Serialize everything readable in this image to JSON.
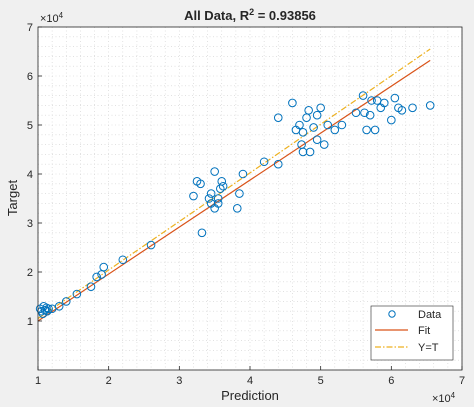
{
  "chart_data": {
    "type": "scatter",
    "title_prefix": "All Data, R",
    "title_sup": "2",
    "title_suffix": " = 0.93856",
    "xlabel": "Prediction",
    "ylabel": "Target",
    "xlim": [
      1,
      7
    ],
    "ylim": [
      0,
      7
    ],
    "x_ticks": [
      1,
      2,
      3,
      4,
      5,
      6,
      7
    ],
    "y_ticks": [
      1,
      2,
      3,
      4,
      5,
      6,
      7
    ],
    "x_tick_labels": [
      "1",
      "2",
      "3",
      "4",
      "5",
      "6",
      "7"
    ],
    "y_tick_labels": [
      "1",
      "2",
      "3",
      "4",
      "5",
      "6",
      "7"
    ],
    "x_exponent_base": "×10",
    "x_exponent_power": "4",
    "y_exponent_base": "×10",
    "y_exponent_power": "4",
    "grid": "dotted",
    "legend_position": "bottom-right",
    "colors": {
      "data": "#0072bd",
      "fit": "#d95319",
      "identity": "#edb120"
    },
    "series": [
      {
        "name": "Data",
        "kind": "markers",
        "x": [
          1.03,
          1.05,
          1.08,
          1.1,
          1.12,
          1.15,
          1.07,
          1.13,
          1.2,
          1.3,
          1.4,
          1.55,
          1.75,
          1.9,
          2.2,
          1.83,
          1.93,
          2.6,
          3.2,
          3.25,
          3.3,
          3.42,
          3.45,
          3.5,
          3.55,
          3.58,
          3.6,
          3.62,
          3.5,
          3.32,
          3.45,
          3.55,
          3.85,
          3.9,
          3.82,
          4.2,
          4.4,
          4.4,
          4.6,
          4.65,
          4.7,
          4.75,
          4.75,
          4.8,
          4.85,
          4.9,
          4.95,
          4.95,
          5.0,
          5.05,
          5.1,
          5.2,
          5.3,
          5.5,
          4.73,
          4.83,
          5.6,
          5.62,
          5.65,
          5.72,
          5.77,
          5.85,
          5.9,
          6.0,
          6.05,
          6.1,
          6.15,
          6.3,
          6.55,
          5.8,
          5.7
        ],
        "y": [
          1.25,
          1.2,
          1.3,
          1.22,
          1.27,
          1.25,
          1.15,
          1.2,
          1.25,
          1.3,
          1.4,
          1.55,
          1.7,
          1.95,
          2.25,
          1.9,
          2.1,
          2.55,
          3.55,
          3.85,
          3.8,
          3.5,
          3.4,
          3.3,
          3.5,
          3.7,
          3.85,
          3.75,
          4.05,
          2.8,
          3.6,
          3.4,
          3.6,
          4.0,
          3.3,
          4.25,
          4.2,
          5.15,
          5.45,
          4.9,
          5.0,
          4.85,
          4.45,
          5.15,
          4.45,
          4.95,
          5.2,
          4.7,
          5.35,
          4.6,
          5.0,
          4.9,
          5.0,
          5.25,
          4.6,
          5.3,
          5.6,
          5.25,
          4.9,
          5.5,
          4.9,
          5.35,
          5.45,
          5.1,
          5.55,
          5.35,
          5.3,
          5.35,
          5.4,
          5.5,
          5.2
        ]
      },
      {
        "name": "Fit",
        "kind": "line",
        "style": "solid",
        "x": [
          1,
          6.55
        ],
        "y": [
          1.0,
          6.32
        ]
      },
      {
        "name": "Y=T",
        "kind": "line",
        "style": "dashdot",
        "x": [
          1,
          6.55
        ],
        "y": [
          1.05,
          6.55
        ]
      }
    ]
  }
}
